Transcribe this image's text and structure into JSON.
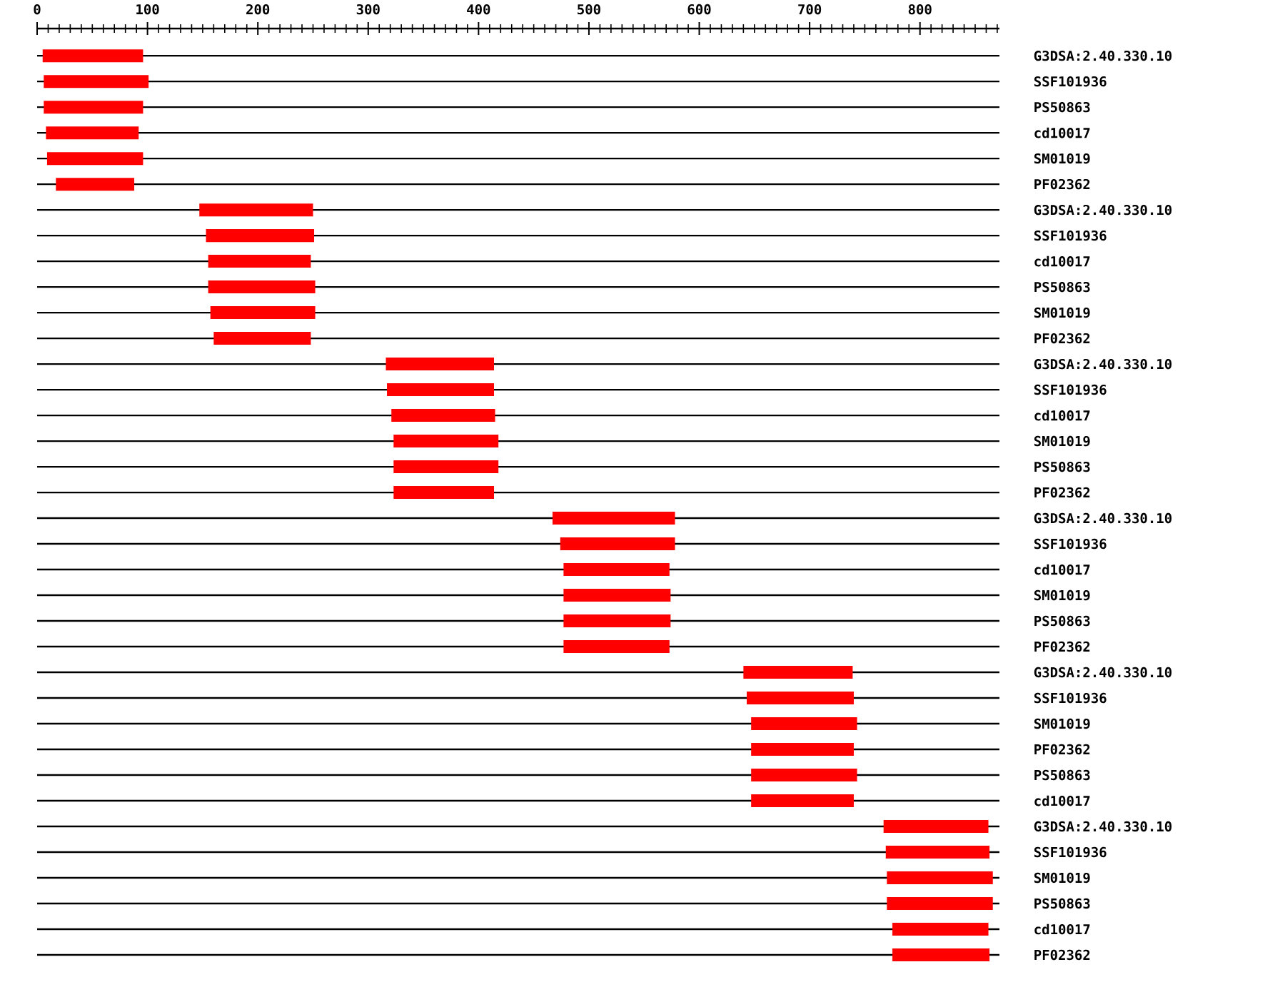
{
  "chart_data": {
    "type": "bar",
    "orientation": "horizontal",
    "color": "#ff0000",
    "grid": "y",
    "categories": [
      "G3DSA:2.40.330.10",
      "SSF101936",
      "PS50863",
      "cd10017",
      "SM01019",
      "PF02362",
      "G3DSA:2.40.330.10",
      "SSF101936",
      "cd10017",
      "PS50863",
      "SM01019",
      "PF02362",
      "G3DSA:2.40.330.10",
      "SSF101936",
      "cd10017",
      "SM01019",
      "PS50863",
      "PF02362",
      "G3DSA:2.40.330.10",
      "SSF101936",
      "cd10017",
      "SM01019",
      "PS50863",
      "PF02362",
      "G3DSA:2.40.330.10",
      "SSF101936",
      "SM01019",
      "PF02362",
      "PS50863",
      "cd10017",
      "G3DSA:2.40.330.10",
      "SSF101936",
      "SM01019",
      "PS50863",
      "cd10017",
      "PF02362"
    ],
    "base": [
      5,
      6,
      6,
      8,
      9,
      17,
      147,
      153,
      155,
      155,
      157,
      160,
      316,
      317,
      321,
      323,
      323,
      323,
      467,
      474,
      477,
      477,
      477,
      477,
      640,
      643,
      647,
      647,
      647,
      647,
      767,
      769,
      770,
      770,
      775,
      775
    ],
    "values": [
      91,
      95,
      90,
      84,
      87,
      71,
      103,
      98,
      93,
      97,
      95,
      88,
      98,
      97,
      94,
      95,
      95,
      91,
      111,
      104,
      96,
      97,
      97,
      96,
      99,
      97,
      96,
      93,
      96,
      93,
      95,
      94,
      96,
      96,
      87,
      88
    ],
    "xlim": [
      0,
      872
    ],
    "xticks": [
      0,
      {
        "value": 10,
        "label": null
      },
      {
        "value": 20,
        "label": null
      },
      {
        "value": 30,
        "label": null
      },
      {
        "value": 40,
        "label": null
      },
      {
        "value": 50,
        "label": null
      },
      {
        "value": 60,
        "label": null
      },
      {
        "value": 70,
        "label": null
      },
      {
        "value": 80,
        "label": null
      },
      {
        "value": 90,
        "label": null
      },
      100,
      {
        "value": 110,
        "label": null
      },
      {
        "value": 120,
        "label": null
      },
      {
        "value": 130,
        "label": null
      },
      {
        "value": 140,
        "label": null
      },
      {
        "value": 150,
        "label": null
      },
      {
        "value": 160,
        "label": null
      },
      {
        "value": 170,
        "label": null
      },
      {
        "value": 180,
        "label": null
      },
      {
        "value": 190,
        "label": null
      },
      200,
      {
        "value": 210,
        "label": null
      },
      {
        "value": 220,
        "label": null
      },
      {
        "value": 230,
        "label": null
      },
      {
        "value": 240,
        "label": null
      },
      {
        "value": 250,
        "label": null
      },
      {
        "value": 260,
        "label": null
      },
      {
        "value": 270,
        "label": null
      },
      {
        "value": 280,
        "label": null
      },
      {
        "value": 290,
        "label": null
      },
      300,
      {
        "value": 310,
        "label": null
      },
      {
        "value": 320,
        "label": null
      },
      {
        "value": 330,
        "label": null
      },
      {
        "value": 340,
        "label": null
      },
      {
        "value": 350,
        "label": null
      },
      {
        "value": 360,
        "label": null
      },
      {
        "value": 370,
        "label": null
      },
      {
        "value": 380,
        "label": null
      },
      {
        "value": 390,
        "label": null
      },
      400,
      {
        "value": 410,
        "label": null
      },
      {
        "value": 420,
        "label": null
      },
      {
        "value": 430,
        "label": null
      },
      {
        "value": 440,
        "label": null
      },
      {
        "value": 450,
        "label": null
      },
      {
        "value": 460,
        "label": null
      },
      {
        "value": 470,
        "label": null
      },
      {
        "value": 480,
        "label": null
      },
      {
        "value": 490,
        "label": null
      },
      500,
      {
        "value": 510,
        "label": null
      },
      {
        "value": 520,
        "label": null
      },
      {
        "value": 530,
        "label": null
      },
      {
        "value": 540,
        "label": null
      },
      {
        "value": 550,
        "label": null
      },
      {
        "value": 560,
        "label": null
      },
      {
        "value": 570,
        "label": null
      },
      {
        "value": 580,
        "label": null
      },
      {
        "value": 590,
        "label": null
      },
      600,
      {
        "value": 610,
        "label": null
      },
      {
        "value": 620,
        "label": null
      },
      {
        "value": 630,
        "label": null
      },
      {
        "value": 640,
        "label": null
      },
      {
        "value": 650,
        "label": null
      },
      {
        "value": 660,
        "label": null
      },
      {
        "value": 670,
        "label": null
      },
      {
        "value": 680,
        "label": null
      },
      {
        "value": 690,
        "label": null
      },
      700,
      {
        "value": 710,
        "label": null
      },
      {
        "value": 720,
        "label": null
      },
      {
        "value": 730,
        "label": null
      },
      {
        "value": 740,
        "label": null
      },
      {
        "value": 750,
        "label": null
      },
      {
        "value": 760,
        "label": null
      },
      {
        "value": 770,
        "label": null
      },
      {
        "value": 780,
        "label": null
      },
      {
        "value": 790,
        "label": null
      },
      800,
      {
        "value": 810,
        "label": null
      },
      {
        "value": 820,
        "label": null
      },
      {
        "value": 830,
        "label": null
      },
      {
        "value": 840,
        "label": null
      },
      {
        "value": 850,
        "label": null
      },
      {
        "value": 860,
        "label": null
      },
      {
        "value": 870,
        "label": null
      }
    ]
  }
}
